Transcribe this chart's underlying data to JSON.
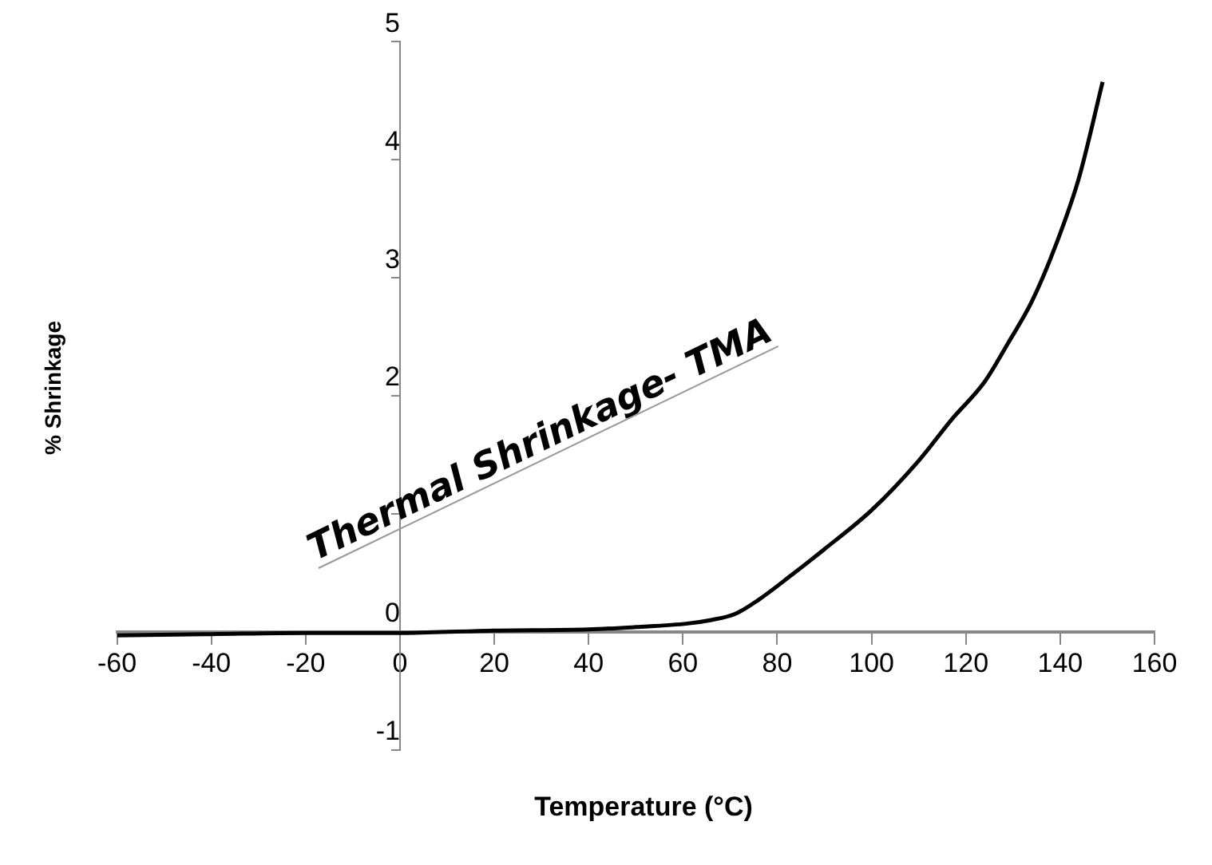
{
  "chart_data": {
    "type": "line",
    "title": "Thermal Shrinkage- TMA",
    "xlabel": "Temperature (°C)",
    "ylabel": "% Shrinkage",
    "x": [
      -60,
      -40,
      -20,
      0,
      20,
      40,
      50,
      61,
      66,
      71,
      76,
      83,
      90,
      100,
      110,
      117,
      124,
      129,
      134,
      139,
      144,
      149
    ],
    "series": [
      {
        "color": "#000000",
        "values": [
          -0.03,
          -0.02,
          -0.01,
          -0.01,
          0.01,
          0.02,
          0.04,
          0.07,
          0.1,
          0.15,
          0.27,
          0.48,
          0.7,
          1.03,
          1.45,
          1.8,
          2.12,
          2.45,
          2.8,
          3.27,
          3.85,
          4.66
        ]
      }
    ],
    "xlim": [
      -60,
      160
    ],
    "xticks": [
      -60,
      -40,
      -20,
      0,
      20,
      40,
      60,
      80,
      100,
      120,
      140,
      160
    ],
    "ylim": [
      -1,
      5
    ],
    "yticks": [
      -1,
      0,
      {
        "value": 1,
        "label": null
      },
      2,
      3,
      4,
      5
    ],
    "grid": false,
    "legend": false,
    "marker": "none",
    "line_style": "solid"
  }
}
